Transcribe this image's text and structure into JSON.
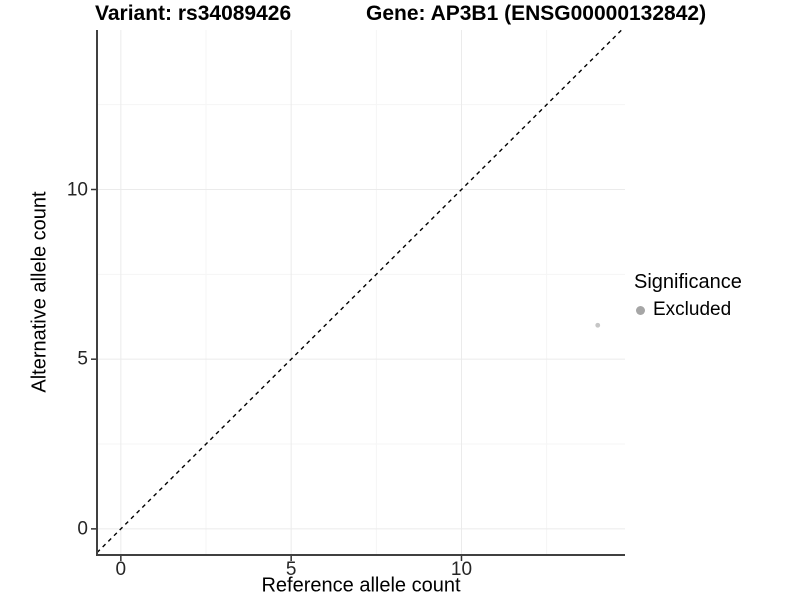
{
  "chart_data": {
    "type": "scatter",
    "title_left": "Variant: rs34089426",
    "title_right": "Gene: AP3B1 (ENSG00000132842)",
    "xlabel": "Reference allele count",
    "ylabel": "Alternative allele count",
    "xlim": [
      -0.7,
      14.8
    ],
    "ylim": [
      -0.77,
      14.7
    ],
    "xticks": [
      0,
      5,
      10
    ],
    "yticks": [
      0,
      5,
      10
    ],
    "x_minor_ticks": [
      2.5,
      7.5,
      12.5
    ],
    "y_minor_ticks": [
      2.5,
      7.5,
      12.5
    ],
    "grid": "major and minor gridlines, very light grey on white",
    "points": [
      {
        "x": 14,
        "y": 6,
        "series": "Excluded"
      }
    ],
    "point_style": {
      "color": "#c6c6c6",
      "radius_px": 2.4
    },
    "identity_line": {
      "slope": 1,
      "intercept": 0,
      "style": "dashed",
      "color": "#000000"
    },
    "legend": {
      "title": "Significance",
      "position": "right",
      "items": [
        {
          "label": "Excluded",
          "color": "#a6a6a6"
        }
      ]
    },
    "colors": {
      "axis_line": "#404040",
      "tick_mark": "#333333",
      "grid_major": "#ebebeb",
      "grid_minor": "#f5f5f5",
      "tick_text": "#262626"
    }
  }
}
